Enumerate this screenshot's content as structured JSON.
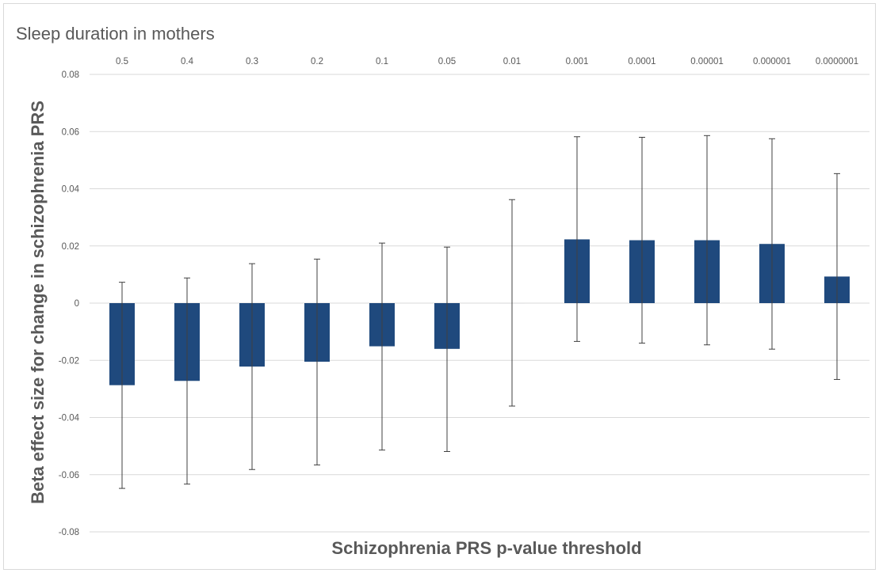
{
  "chart_data": {
    "type": "bar",
    "title": "Sleep duration in mothers",
    "xlabel": "Schizophrenia PRS p-value threshold",
    "ylabel": "Beta effect size for change in schizophrenia PRS",
    "categories": [
      "0.5",
      "0.4",
      "0.3",
      "0.2",
      "0.1",
      "0.05",
      "0.01",
      "0.001",
      "0.0001",
      "0.00001",
      "0.000001",
      "0.0000001"
    ],
    "series": [
      {
        "values": [
          -0.0287,
          -0.0272,
          -0.0222,
          -0.0205,
          -0.0151,
          -0.016,
          0.0,
          0.0223,
          0.022,
          0.022,
          0.0207,
          0.0093
        ],
        "error_low": [
          -0.0648,
          -0.0633,
          -0.0582,
          -0.0566,
          -0.0514,
          -0.0519,
          -0.036,
          -0.0134,
          -0.014,
          -0.0146,
          -0.0161,
          -0.0267
        ],
        "error_high": [
          0.0073,
          0.0088,
          0.0138,
          0.0154,
          0.021,
          0.0196,
          0.0362,
          0.0582,
          0.058,
          0.0586,
          0.0575,
          0.0453
        ],
        "color": "#1f497d"
      }
    ],
    "yticks": [
      "0.08",
      "0.06",
      "0.04",
      "0.02",
      "0",
      "-0.02",
      "-0.04",
      "-0.06",
      "-0.08"
    ],
    "ylim": [
      -0.08,
      0.08
    ],
    "grid": true,
    "category_labels_position": "top",
    "colors": {
      "bar": "#1f497d",
      "grid": "#d9d9d9",
      "text": "#595959",
      "error": "#404040"
    }
  }
}
